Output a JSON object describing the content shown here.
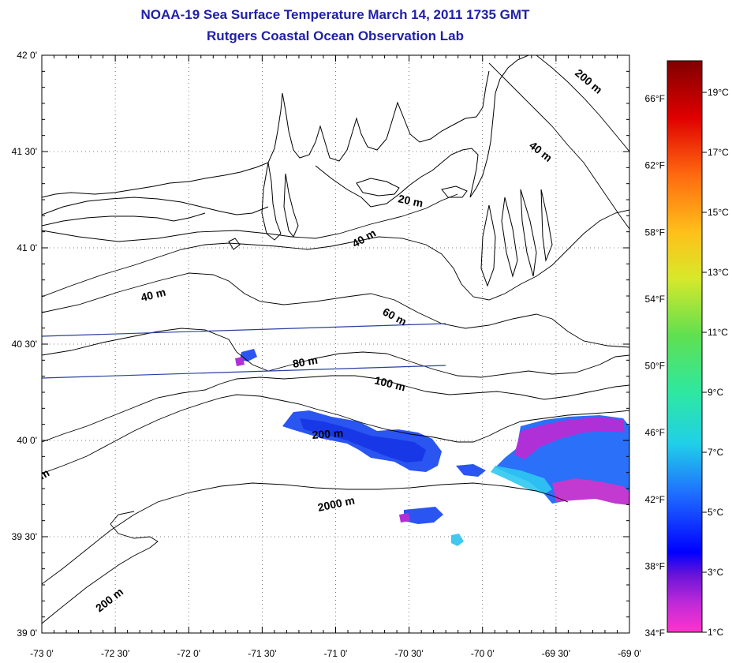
{
  "title": "NOAA-19 Sea Surface Temperature March 14, 2011 1735 GMT",
  "subtitle": "Rutgers Coastal Ocean Observation Lab",
  "map": {
    "lat_labels": [
      "42 0'",
      "41 30'",
      "41 0'",
      "40 30'",
      "40 0'",
      "39 30'",
      "39 0'"
    ],
    "lon_labels": [
      "-73 0'",
      "-72 30'",
      "-72 0'",
      "-71 30'",
      "-71 0'",
      "-70 30'",
      "-70 0'",
      "-69 30'",
      "-69 0'"
    ],
    "lat_range": [
      39.0,
      42.0
    ],
    "lon_range": [
      -73.0,
      -69.0
    ],
    "grid": "dotted",
    "contour_labels": [
      "200 m",
      "40 m",
      "20 m",
      "40 m",
      "40 m",
      "60 m",
      "80 m",
      "100 m",
      "200 m",
      "2000 m",
      "200 m",
      "m"
    ],
    "land_color": "#ffffff",
    "coast_color": "#000000",
    "track_color": "#2a3fa0"
  },
  "colorbar": {
    "celsius_labels": [
      "19°C",
      "17°C",
      "15°C",
      "13°C",
      "11°C",
      "9°C",
      "7°C",
      "5°C",
      "3°C",
      "1°C"
    ],
    "fahrenheit_labels": [
      "66°F",
      "62°F",
      "58°F",
      "54°F",
      "50°F",
      "46°F",
      "42°F",
      "38°F",
      "34°F"
    ],
    "colors": [
      "#ff33cc",
      "#7a1fd6",
      "#0000ff",
      "#1e6cff",
      "#20d0e8",
      "#2ee88a",
      "#6be04a",
      "#e8e82a",
      "#ffa01a",
      "#ff3a1a",
      "#c00000",
      "#800000"
    ]
  }
}
